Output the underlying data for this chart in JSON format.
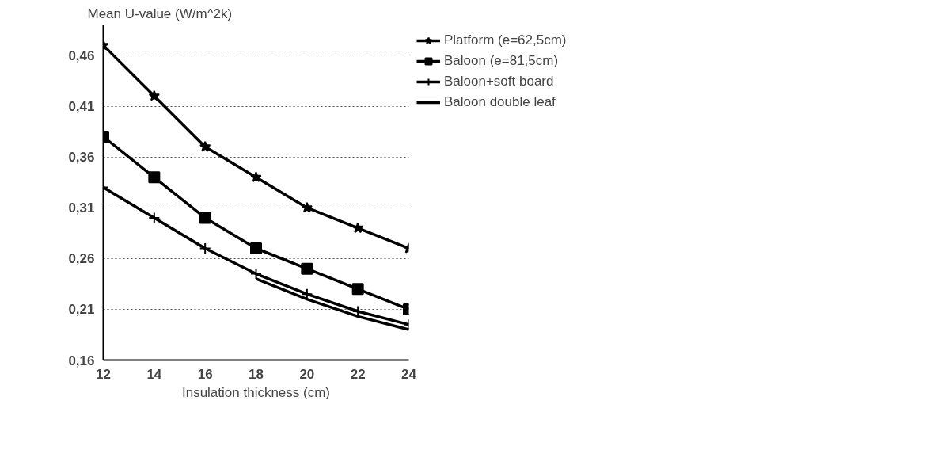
{
  "chart_data": {
    "type": "line",
    "ylabel": "Mean U-value (W/m^2k)",
    "xlabel": "Insulation thickness (cm)",
    "x": [
      12,
      14,
      16,
      18,
      20,
      22,
      24
    ],
    "series": [
      {
        "name": "Platform (e=62,5cm)",
        "color": "#000000",
        "marker": "star",
        "values": [
          0.47,
          0.42,
          0.37,
          0.34,
          0.31,
          0.29,
          0.27
        ]
      },
      {
        "name": "Baloon (e=81,5cm)",
        "color": "#000000",
        "marker": "square",
        "values": [
          0.38,
          0.34,
          0.3,
          0.27,
          0.25,
          0.23,
          0.21
        ]
      },
      {
        "name": "Baloon+soft board",
        "color": "#000000",
        "marker": "cross",
        "values": [
          0.33,
          0.3,
          0.27,
          0.245,
          0.225,
          0.208,
          0.195
        ]
      },
      {
        "name": "Baloon double leaf",
        "color": "#000000",
        "marker": "none",
        "values": [
          null,
          null,
          null,
          0.24,
          0.22,
          0.203,
          0.19
        ]
      }
    ],
    "xlim": [
      12,
      24
    ],
    "xticks": [
      12,
      14,
      16,
      18,
      20,
      22,
      24
    ],
    "ylim": [
      0.16,
      0.49
    ],
    "yticks": [
      {
        "value": 0.16,
        "label": "0,16"
      },
      {
        "value": 0.21,
        "label": "0,21"
      },
      {
        "value": 0.26,
        "label": "0,26"
      },
      {
        "value": 0.31,
        "label": "0,31"
      },
      {
        "value": 0.36,
        "label": "0,36"
      },
      {
        "value": 0.41,
        "label": "0,41"
      },
      {
        "value": 0.46,
        "label": "0,46"
      }
    ],
    "grid": "y",
    "legend": "right",
    "line_style": "solid"
  }
}
